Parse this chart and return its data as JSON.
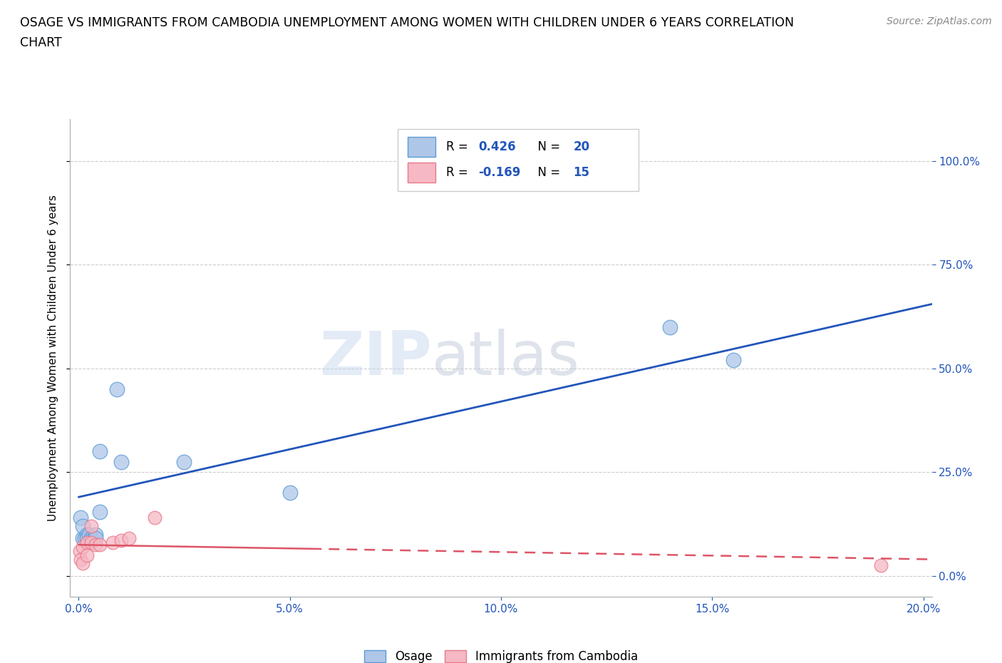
{
  "title_line1": "OSAGE VS IMMIGRANTS FROM CAMBODIA UNEMPLOYMENT AMONG WOMEN WITH CHILDREN UNDER 6 YEARS CORRELATION",
  "title_line2": "CHART",
  "source": "Source: ZipAtlas.com",
  "ylabel": "Unemployment Among Women with Children Under 6 years",
  "xlim": [
    -0.002,
    0.202
  ],
  "ylim": [
    -0.05,
    1.1
  ],
  "xtick_labels": [
    "0.0%",
    "5.0%",
    "10.0%",
    "15.0%",
    "20.0%"
  ],
  "xtick_values": [
    0.0,
    0.05,
    0.1,
    0.15,
    0.2
  ],
  "ytick_labels": [
    "0.0%",
    "25.0%",
    "50.0%",
    "75.0%",
    "100.0%"
  ],
  "ytick_values": [
    0.0,
    0.25,
    0.5,
    0.75,
    1.0
  ],
  "osage_color": "#aec6e8",
  "osage_edge_color": "#5b9bd5",
  "cambodia_color": "#f5b8c4",
  "cambodia_edge_color": "#e8788a",
  "osage_line_color": "#2255bb",
  "cambodia_line_color": "#dd5566",
  "watermark_zip": "ZIP",
  "watermark_atlas": "atlas",
  "legend_R_osage": "R =  0.426",
  "legend_N_osage": "N = 20",
  "legend_R_cambodia": "R = -0.169",
  "legend_N_cambodia": "N = 15",
  "osage_x": [
    0.0005,
    0.001,
    0.001,
    0.0015,
    0.002,
    0.002,
    0.0025,
    0.003,
    0.003,
    0.003,
    0.004,
    0.004,
    0.005,
    0.005,
    0.009,
    0.01,
    0.025,
    0.05,
    0.14,
    0.155
  ],
  "osage_y": [
    0.14,
    0.09,
    0.12,
    0.09,
    0.1,
    0.09,
    0.1,
    0.09,
    0.09,
    0.085,
    0.1,
    0.09,
    0.3,
    0.155,
    0.45,
    0.275,
    0.275,
    0.2,
    0.6,
    0.52
  ],
  "cambodia_x": [
    0.0003,
    0.0005,
    0.001,
    0.001,
    0.002,
    0.002,
    0.003,
    0.003,
    0.004,
    0.005,
    0.008,
    0.01,
    0.012,
    0.018,
    0.19
  ],
  "cambodia_y": [
    0.06,
    0.04,
    0.07,
    0.03,
    0.08,
    0.05,
    0.12,
    0.08,
    0.075,
    0.075,
    0.08,
    0.085,
    0.09,
    0.14,
    0.025
  ],
  "osage_line_x0": 0.0,
  "osage_line_y0": 0.19,
  "osage_line_x1": 0.202,
  "osage_line_y1": 0.655,
  "cambodia_line_x0": 0.0,
  "cambodia_line_y0": 0.075,
  "cambodia_line_x1": 0.202,
  "cambodia_line_y1": 0.04,
  "osage_scatter_size": 220,
  "cambodia_scatter_size": 180,
  "grid_color": "#cccccc",
  "background_color": "#ffffff",
  "legend_label_osage": "Osage",
  "legend_label_cambodia": "Immigrants from Cambodia"
}
